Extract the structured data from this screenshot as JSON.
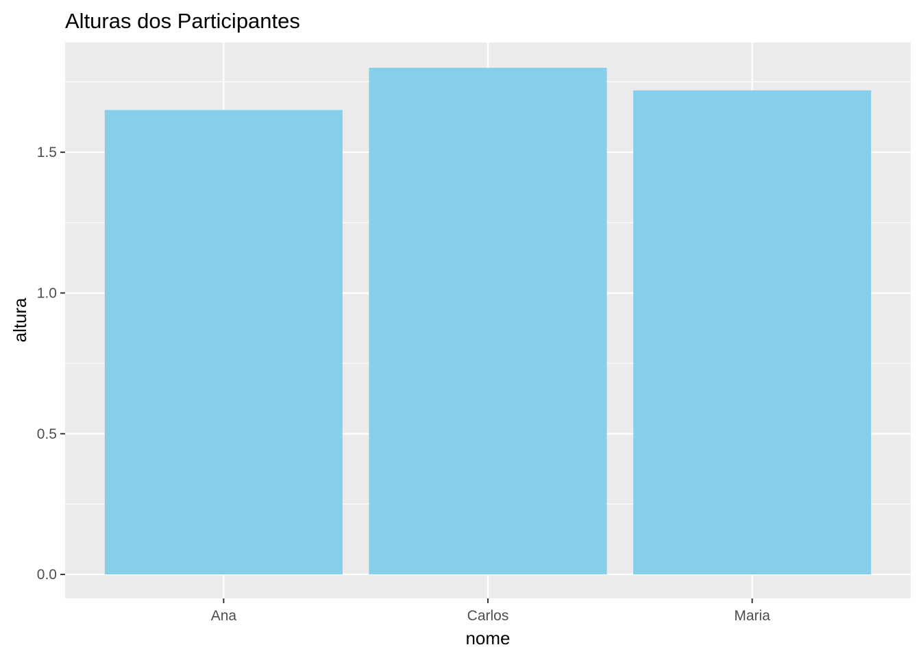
{
  "chart_data": {
    "type": "bar",
    "title": "Alturas dos Participantes",
    "xlabel": "nome",
    "ylabel": "altura",
    "categories": [
      "Ana",
      "Carlos",
      "Maria"
    ],
    "values": [
      1.65,
      1.8,
      1.72
    ],
    "ylim": [
      -0.085,
      1.89
    ],
    "yticks": [
      {
        "value": 0.0,
        "label": "0.0"
      },
      {
        "value": 0.5,
        "label": "0.5"
      },
      {
        "value": 1.0,
        "label": "1.0"
      },
      {
        "value": 1.5,
        "label": "1.5"
      }
    ],
    "grid": true,
    "legend": "none",
    "colors": {
      "bar": "#87CEEB",
      "panel": "#EBEBEB",
      "grid": "#FFFFFF",
      "tick": "#333333"
    }
  }
}
